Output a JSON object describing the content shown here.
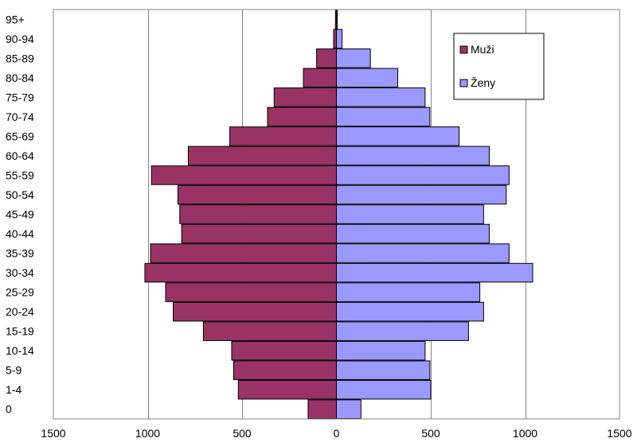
{
  "chart_data": {
    "type": "bar",
    "orientation": "horizontal",
    "layout": "population-pyramid",
    "categories": [
      "0",
      "1-4",
      "5-9",
      "10-14",
      "15-19",
      "20-24",
      "25-29",
      "30-34",
      "35-39",
      "40-44",
      "45-49",
      "50-54",
      "55-59",
      "60-64",
      "65-69",
      "70-74",
      "75-79",
      "80-84",
      "85-89",
      "90-94",
      "95+"
    ],
    "series": [
      {
        "name": "Muži",
        "color": "#993366",
        "side": "left",
        "values": [
          150,
          520,
          545,
          555,
          705,
          865,
          905,
          1015,
          985,
          820,
          830,
          840,
          980,
          785,
          565,
          365,
          330,
          175,
          105,
          15,
          5
        ]
      },
      {
        "name": "Ženy",
        "color": "#9999FF",
        "side": "right",
        "values": [
          130,
          500,
          495,
          470,
          700,
          780,
          760,
          1040,
          915,
          810,
          780,
          900,
          915,
          810,
          650,
          495,
          470,
          325,
          180,
          30,
          5
        ]
      }
    ],
    "xlim": [
      -1500,
      1500
    ],
    "xticks": [
      -1500,
      -1000,
      -500,
      0,
      500,
      1000,
      1500
    ],
    "xtick_labels": [
      "1500",
      "1000",
      "500",
      "0",
      "500",
      "1000",
      "1500"
    ],
    "grid": "vertical",
    "legend": {
      "position": "top-right",
      "entries": [
        "Muži",
        "Ženy"
      ]
    },
    "title": "",
    "xlabel": "",
    "ylabel": ""
  }
}
